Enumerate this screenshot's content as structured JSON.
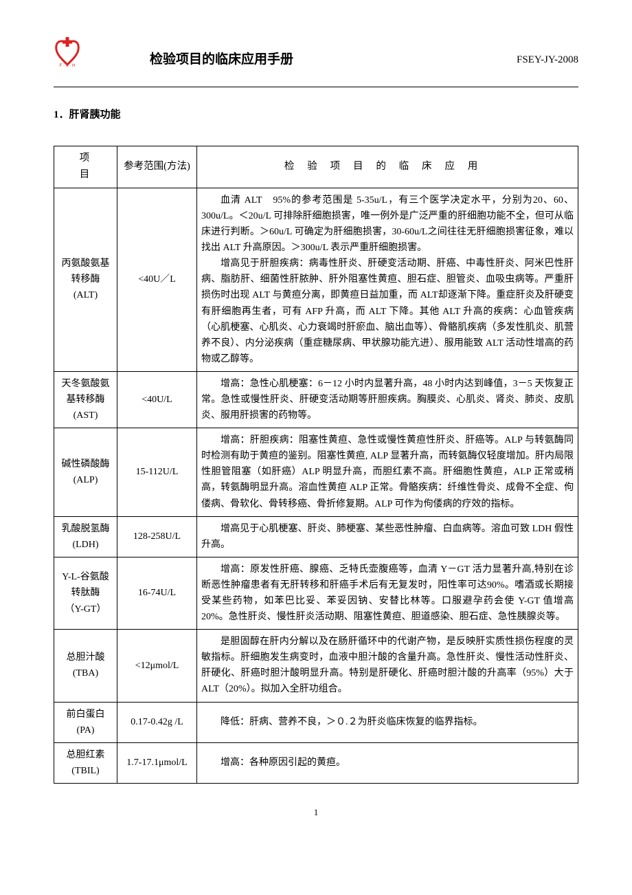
{
  "header": {
    "logo_letters": "F · S · H",
    "title": "检验项目的临床应用手册",
    "code": "FSEY-JY-2008"
  },
  "section_title": "1．肝肾胰功能",
  "columns": {
    "item": "项目",
    "ref": "参考范围(方法)",
    "app": "检验项目的临床应用"
  },
  "rows": [
    {
      "item": "丙氨酸氨基\n转移酶\n(ALT)",
      "ref": "<40U／L",
      "app_paras": [
        "血清 ALT　95%的参考范围是 5-35u/L，有三个医学决定水平，分别为20、60、300u/L。＜20u/L 可排除肝细胞损害，唯一例外是广泛严重的肝细胞功能不全，但可从临床进行判断。＞60u/L 可确定为肝细胞损害，30-60u/L之间往往无肝细胞损害征象，难以找出 ALT 升高原因。＞300u/L 表示严重肝细胞损害。",
        "增高见于肝胆疾病：病毒性肝炎、肝硬变活动期、肝癌、中毒性肝炎、阿米巴性肝病、脂肪肝、细菌性肝脓肿、肝外阻塞性黄疸、胆石症、胆管炎、血吸虫病等。严重肝损伤时出现 ALT 与黄疸分离，即黄疸日益加重，而 ALT却逐渐下降。重症肝炎及肝硬变有肝细胞再生者，可有 AFP 升高，而 ALT 下降。其他 ALT 升高的疾病：心血管疾病（心肌梗塞、心肌炎、心力衰竭时肝瘀血、脑出血等）、骨骼肌疾病（多发性肌炎、肌营养不良）、内分泌疾病（重症糖尿病、甲状腺功能亢进）、服用能致 ALT 活动性增高的药物或乙醇等。"
      ]
    },
    {
      "item": "天冬氨酸氨\n基转移酶\n(AST)",
      "ref": "<40U/L",
      "app_paras": [
        "增高：急性心肌梗塞：6－12 小时内显著升高，48 小时内达到峰值，3－5 天恢复正常。急性或慢性肝炎、肝硬变活动期等肝胆疾病。胸膜炎、心肌炎、肾炎、肺炎、皮肌炎、服用肝损害的药物等。"
      ]
    },
    {
      "item": "碱性磷酸酶\n(ALP)",
      "ref": "15-112U/L",
      "app_paras": [
        "增高：肝胆疾病：阻塞性黄疸、急性或慢性黄疸性肝炎、肝癌等。ALP 与转氨酶同时检测有助于黄疸的鉴别。阻塞性黄疸, ALP 显著升高，而转氨酶仅轻度增加。肝内局限性胆管阻塞（如肝癌）ALP 明显升高，而胆红素不高。肝细胞性黄疸，ALP 正常或稍高，转氨酶明显升高。溶血性黄疸 ALP 正常。骨骼疾病：纤维性骨炎、成骨不全症、佝偻病、骨软化、骨转移癌、骨折修复期。ALP 可作为佝偻病的疗效的指标。"
      ]
    },
    {
      "item": "乳酸脱氢酶\n(LDH)",
      "ref": "128-258U/L",
      "app_paras": [
        "增高见于心肌梗塞、肝炎、肺梗塞、某些恶性肿瘤、白血病等。溶血可致 LDH 假性升高。"
      ]
    },
    {
      "item": "Υ-L-谷氨酸\n转肽酶\n（Υ-GT）",
      "ref": "16-74U/L",
      "app_paras": [
        "增高：原发性肝癌、腺癌、乏特氏壶腹癌等，血清 Υ－GT 活力显著升高,特别在诊断恶性肿瘤患者有无肝转移和肝癌手术后有无复发时，阳性率可达90%。嗜酒或长期接受某些药物，如苯巴比妥、苯妥因钠、安替比林等。口服避孕药会使 Υ-GT 值增高 20%。急性肝炎、慢性肝炎活动期、阻塞性黄疸、胆道感染、胆石症、急性胰腺炎等。"
      ]
    },
    {
      "item": "总胆汁酸\n(TBA)",
      "ref": "<12μmol/L",
      "app_paras": [
        "是胆固醇在肝内分解以及在肠肝循环中的代谢产物，是反映肝实质性损伤程度的灵敏指标。肝细胞发生病变时，血液中胆汁酸的含量升高。急性肝炎、慢性活动性肝炎、肝硬化、肝癌时胆汁酸明显升高。特别是肝硬化、肝癌时胆汁酸的升高率（95%）大于 ALT（20%）。拟加入全肝功组合。"
      ]
    },
    {
      "item": "前白蛋白\n(PA)",
      "ref": "0.17-0.42g /L",
      "app_paras": [
        "降低：肝病、营养不良，＞０.２为肝炎临床恢复的临界指标。"
      ]
    },
    {
      "item": "总胆红素\n(TBIL)",
      "ref": "1.7-17.1μmol/L",
      "app_paras": [
        "增高：各种原因引起的黄疸。"
      ]
    }
  ],
  "page_number": "1",
  "colors": {
    "logo_red": "#d22",
    "text": "#000000",
    "border": "#000000",
    "background": "#ffffff"
  },
  "fontsize": {
    "body": 14,
    "header_title": 19,
    "section": 15
  }
}
